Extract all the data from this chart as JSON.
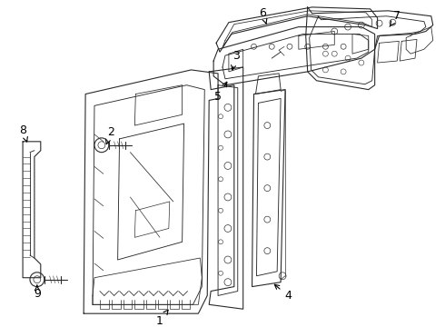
{
  "bg_color": "#ffffff",
  "line_color": "#2a2a2a",
  "label_color": "#000000",
  "lw": 0.8,
  "fig_w": 4.9,
  "fig_h": 3.6,
  "dpi": 100
}
